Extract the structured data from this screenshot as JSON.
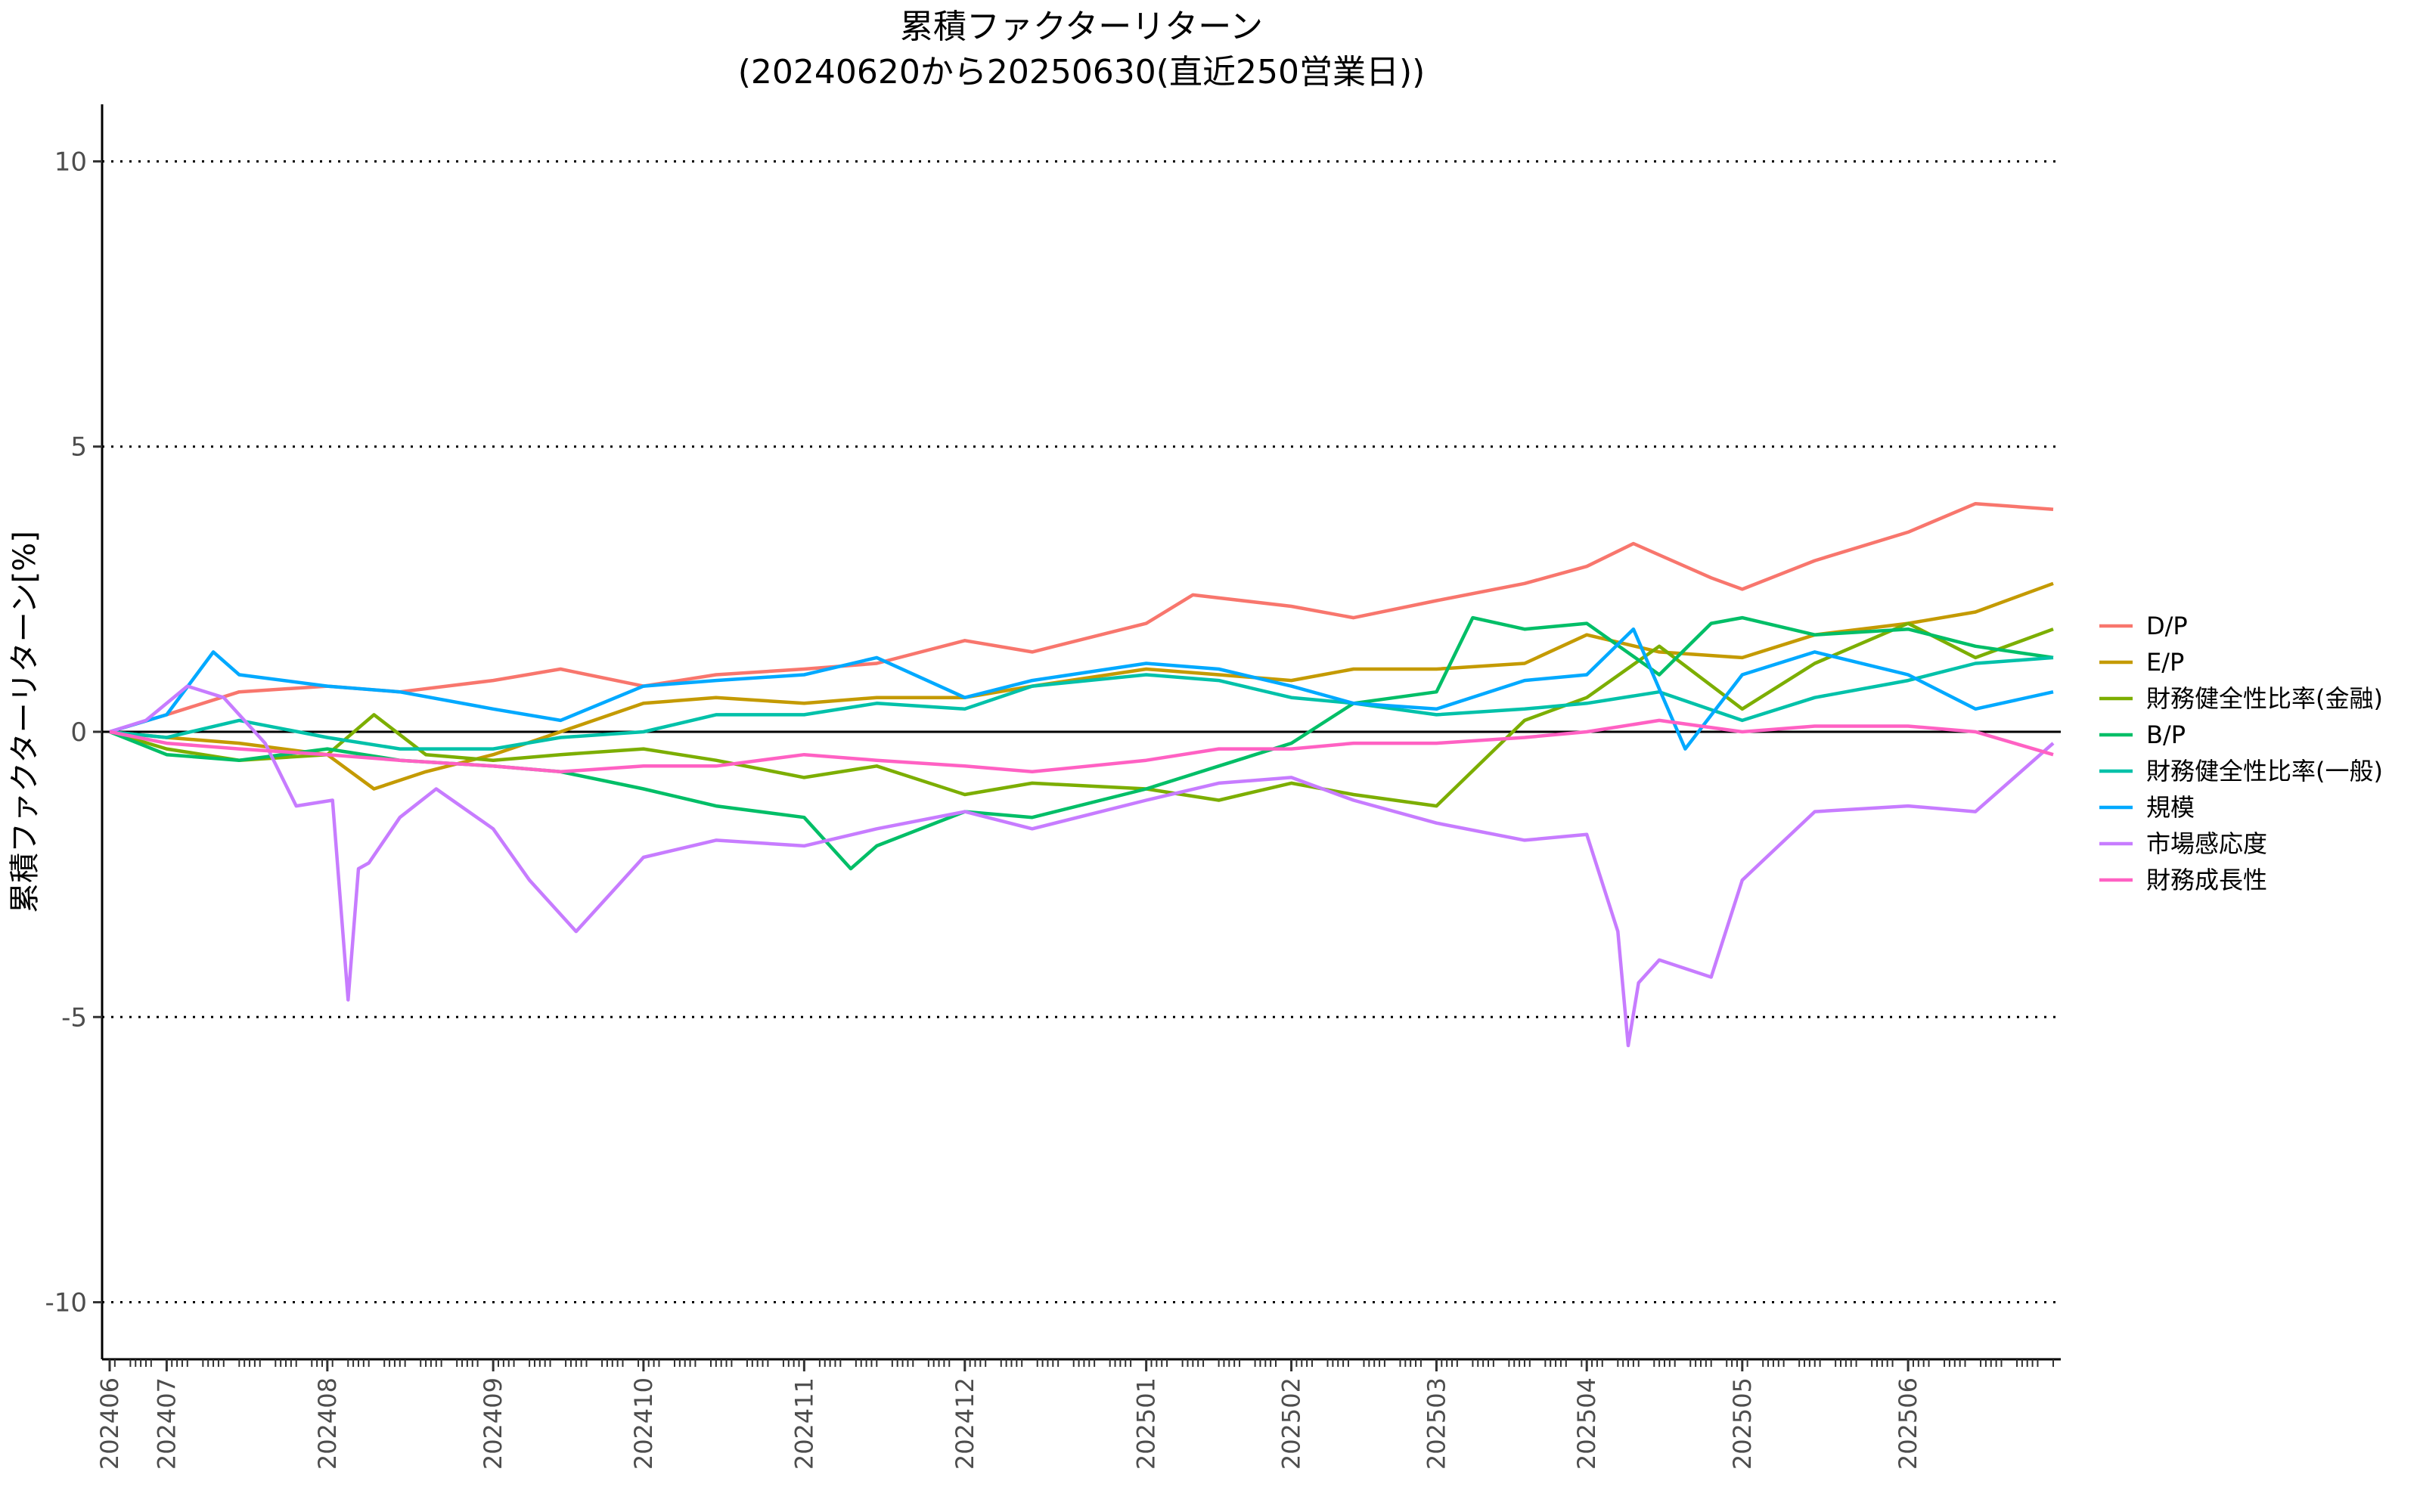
{
  "chart_data": {
    "type": "line",
    "title": "累積ファクターリターン",
    "subtitle": "(20240620から20250630(直近250営業日))",
    "xlabel": "",
    "ylabel": "累積ファクターリターン[%]",
    "ylim": [
      -11,
      11
    ],
    "yticks": [
      -10,
      -5,
      0,
      5,
      10
    ],
    "grid": "horizontal dotted",
    "legend_position": "right",
    "x_start": "2024-06-20",
    "x_end": "2025-06-30",
    "x_tick_labels": [
      "202406",
      "202407",
      "202408",
      "202409",
      "202410",
      "202411",
      "202412",
      "202501",
      "202502",
      "202503",
      "202504",
      "202505",
      "202506"
    ],
    "x_tick_dates": [
      "2024-06-20",
      "2024-07-01",
      "2024-08-01",
      "2024-09-02",
      "2024-10-01",
      "2024-11-01",
      "2024-12-02",
      "2025-01-06",
      "2025-02-03",
      "2025-03-03",
      "2025-04-01",
      "2025-05-01",
      "2025-06-02"
    ],
    "series": [
      {
        "name": "D/P",
        "color": "#F8766D",
        "x": [
          "2024-06-20",
          "2024-07-01",
          "2024-07-15",
          "2024-08-01",
          "2024-08-15",
          "2024-09-02",
          "2024-09-15",
          "2024-10-01",
          "2024-10-15",
          "2024-11-01",
          "2024-11-15",
          "2024-12-02",
          "2024-12-15",
          "2025-01-06",
          "2025-01-15",
          "2025-02-03",
          "2025-02-15",
          "2025-03-03",
          "2025-03-20",
          "2025-04-01",
          "2025-04-10",
          "2025-04-25",
          "2025-05-01",
          "2025-05-15",
          "2025-06-02",
          "2025-06-15",
          "2025-06-30"
        ],
        "values": [
          0,
          0.3,
          0.7,
          0.8,
          0.7,
          0.9,
          1.1,
          0.8,
          1.0,
          1.1,
          1.2,
          1.6,
          1.4,
          1.9,
          2.4,
          2.2,
          2.0,
          2.3,
          2.6,
          2.9,
          3.3,
          2.7,
          2.5,
          3.0,
          3.5,
          4.0,
          3.9
        ]
      },
      {
        "name": "E/P",
        "color": "#C49A00",
        "x": [
          "2024-06-20",
          "2024-07-01",
          "2024-07-15",
          "2024-08-01",
          "2024-08-10",
          "2024-08-20",
          "2024-09-02",
          "2024-09-15",
          "2024-10-01",
          "2024-10-15",
          "2024-11-01",
          "2024-11-15",
          "2024-12-02",
          "2024-12-15",
          "2025-01-06",
          "2025-01-20",
          "2025-02-03",
          "2025-02-15",
          "2025-03-03",
          "2025-03-20",
          "2025-04-01",
          "2025-04-15",
          "2025-05-01",
          "2025-05-15",
          "2025-06-02",
          "2025-06-15",
          "2025-06-30"
        ],
        "values": [
          0,
          -0.1,
          -0.2,
          -0.4,
          -1.0,
          -0.7,
          -0.4,
          0.0,
          0.5,
          0.6,
          0.5,
          0.6,
          0.6,
          0.8,
          1.1,
          1.0,
          0.9,
          1.1,
          1.1,
          1.2,
          1.7,
          1.4,
          1.3,
          1.7,
          1.9,
          2.1,
          2.6
        ]
      },
      {
        "name": "財務健全性比率(金融)",
        "color": "#7CAE00",
        "x": [
          "2024-06-20",
          "2024-07-01",
          "2024-07-15",
          "2024-08-01",
          "2024-08-10",
          "2024-08-20",
          "2024-09-02",
          "2024-09-15",
          "2024-10-01",
          "2024-10-15",
          "2024-11-01",
          "2024-11-15",
          "2024-12-02",
          "2024-12-15",
          "2025-01-06",
          "2025-01-20",
          "2025-02-03",
          "2025-02-15",
          "2025-03-03",
          "2025-03-20",
          "2025-04-01",
          "2025-04-15",
          "2025-05-01",
          "2025-05-15",
          "2025-06-02",
          "2025-06-15",
          "2025-06-30"
        ],
        "values": [
          0,
          -0.3,
          -0.5,
          -0.4,
          0.3,
          -0.4,
          -0.5,
          -0.4,
          -0.3,
          -0.5,
          -0.8,
          -0.6,
          -1.1,
          -0.9,
          -1.0,
          -1.2,
          -0.9,
          -1.1,
          -1.3,
          0.2,
          0.6,
          1.5,
          0.4,
          1.2,
          1.9,
          1.3,
          1.8
        ]
      },
      {
        "name": "B/P",
        "color": "#00BE67",
        "x": [
          "2024-06-20",
          "2024-07-01",
          "2024-07-15",
          "2024-08-01",
          "2024-08-15",
          "2024-09-02",
          "2024-09-15",
          "2024-10-01",
          "2024-10-15",
          "2024-11-01",
          "2024-11-10",
          "2024-11-15",
          "2024-12-02",
          "2024-12-15",
          "2025-01-06",
          "2025-01-20",
          "2025-02-03",
          "2025-02-15",
          "2025-03-03",
          "2025-03-10",
          "2025-03-20",
          "2025-04-01",
          "2025-04-15",
          "2025-04-25",
          "2025-05-01",
          "2025-05-15",
          "2025-06-02",
          "2025-06-15",
          "2025-06-30"
        ],
        "values": [
          0,
          -0.4,
          -0.5,
          -0.3,
          -0.5,
          -0.6,
          -0.7,
          -1.0,
          -1.3,
          -1.5,
          -2.4,
          -2.0,
          -1.4,
          -1.5,
          -1.0,
          -0.6,
          -0.2,
          0.5,
          0.7,
          2.0,
          1.8,
          1.9,
          1.0,
          1.9,
          2.0,
          1.7,
          1.8,
          1.5,
          1.3
        ]
      },
      {
        "name": "財務健全性比率(一般)",
        "color": "#00C1A9",
        "x": [
          "2024-06-20",
          "2024-07-01",
          "2024-07-15",
          "2024-08-01",
          "2024-08-15",
          "2024-09-02",
          "2024-09-15",
          "2024-10-01",
          "2024-10-15",
          "2024-11-01",
          "2024-11-15",
          "2024-12-02",
          "2024-12-15",
          "2025-01-06",
          "2025-01-20",
          "2025-02-03",
          "2025-02-15",
          "2025-03-03",
          "2025-03-20",
          "2025-04-01",
          "2025-04-15",
          "2025-05-01",
          "2025-05-15",
          "2025-06-02",
          "2025-06-15",
          "2025-06-30"
        ],
        "values": [
          0,
          -0.1,
          0.2,
          -0.1,
          -0.3,
          -0.3,
          -0.1,
          0.0,
          0.3,
          0.3,
          0.5,
          0.4,
          0.8,
          1.0,
          0.9,
          0.6,
          0.5,
          0.3,
          0.4,
          0.5,
          0.7,
          0.2,
          0.6,
          0.9,
          1.2,
          1.3
        ]
      },
      {
        "name": "規模",
        "color": "#00A9FF",
        "x": [
          "2024-06-20",
          "2024-07-01",
          "2024-07-10",
          "2024-07-15",
          "2024-08-01",
          "2024-08-15",
          "2024-09-02",
          "2024-09-15",
          "2024-10-01",
          "2024-10-15",
          "2024-11-01",
          "2024-11-15",
          "2024-12-02",
          "2024-12-15",
          "2025-01-06",
          "2025-01-20",
          "2025-02-03",
          "2025-02-15",
          "2025-03-03",
          "2025-03-20",
          "2025-04-01",
          "2025-04-10",
          "2025-04-20",
          "2025-05-01",
          "2025-05-15",
          "2025-06-02",
          "2025-06-15",
          "2025-06-30"
        ],
        "values": [
          0,
          0.3,
          1.4,
          1.0,
          0.8,
          0.7,
          0.4,
          0.2,
          0.8,
          0.9,
          1.0,
          1.3,
          0.6,
          0.9,
          1.2,
          1.1,
          0.8,
          0.5,
          0.4,
          0.9,
          1.0,
          1.8,
          -0.3,
          1.0,
          1.4,
          1.0,
          0.4,
          0.7
        ]
      },
      {
        "name": "市場感応度",
        "color": "#C77CFF",
        "x": [
          "2024-06-20",
          "2024-06-27",
          "2024-07-05",
          "2024-07-12",
          "2024-07-20",
          "2024-07-26",
          "2024-08-02",
          "2024-08-05",
          "2024-08-07",
          "2024-08-09",
          "2024-08-15",
          "2024-08-22",
          "2024-09-02",
          "2024-09-09",
          "2024-09-18",
          "2024-09-25",
          "2024-10-01",
          "2024-10-15",
          "2024-11-01",
          "2024-11-15",
          "2024-12-02",
          "2024-12-15",
          "2025-01-06",
          "2025-01-20",
          "2025-02-03",
          "2025-02-15",
          "2025-03-03",
          "2025-03-20",
          "2025-04-01",
          "2025-04-07",
          "2025-04-09",
          "2025-04-11",
          "2025-04-15",
          "2025-04-25",
          "2025-05-01",
          "2025-05-15",
          "2025-06-02",
          "2025-06-15",
          "2025-06-30"
        ],
        "values": [
          0,
          0.2,
          0.8,
          0.6,
          -0.2,
          -1.3,
          -1.2,
          -4.7,
          -2.4,
          -2.3,
          -1.5,
          -1.0,
          -1.7,
          -2.6,
          -3.5,
          -2.8,
          -2.2,
          -1.9,
          -2.0,
          -1.7,
          -1.4,
          -1.7,
          -1.2,
          -0.9,
          -0.8,
          -1.2,
          -1.6,
          -1.9,
          -1.8,
          -3.5,
          -5.5,
          -4.4,
          -4.0,
          -4.3,
          -2.6,
          -1.4,
          -1.3,
          -1.4,
          -0.2
        ]
      },
      {
        "name": "財務成長性",
        "color": "#FF61C3",
        "x": [
          "2024-06-20",
          "2024-07-01",
          "2024-07-15",
          "2024-08-01",
          "2024-08-15",
          "2024-09-02",
          "2024-09-15",
          "2024-10-01",
          "2024-10-15",
          "2024-11-01",
          "2024-11-15",
          "2024-12-02",
          "2024-12-15",
          "2025-01-06",
          "2025-01-20",
          "2025-02-03",
          "2025-02-15",
          "2025-03-03",
          "2025-03-20",
          "2025-04-01",
          "2025-04-15",
          "2025-05-01",
          "2025-05-15",
          "2025-06-02",
          "2025-06-15",
          "2025-06-30"
        ],
        "values": [
          0,
          -0.2,
          -0.3,
          -0.4,
          -0.5,
          -0.6,
          -0.7,
          -0.6,
          -0.6,
          -0.4,
          -0.5,
          -0.6,
          -0.7,
          -0.5,
          -0.3,
          -0.3,
          -0.2,
          -0.2,
          -0.1,
          0.0,
          0.2,
          0.0,
          0.1,
          0.1,
          0.0,
          -0.4
        ]
      }
    ]
  }
}
